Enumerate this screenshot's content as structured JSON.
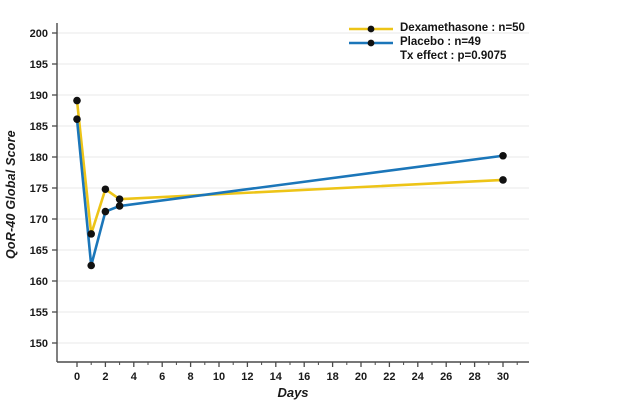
{
  "chart_data": {
    "type": "line",
    "title": "",
    "xlabel": "Days",
    "ylabel": "QoR-40 Global Score",
    "x_ticks": [
      0,
      2,
      4,
      6,
      8,
      10,
      12,
      14,
      16,
      18,
      20,
      22,
      24,
      26,
      28,
      30
    ],
    "x_minor_ticks": [
      1,
      3,
      5,
      7,
      9,
      11,
      13,
      15,
      17,
      19,
      21,
      23,
      25,
      27,
      29,
      31
    ],
    "y_ticks": [
      150,
      155,
      160,
      165,
      170,
      175,
      180,
      185,
      190,
      195,
      200
    ],
    "xlim": [
      -1.4,
      31.8
    ],
    "ylim": [
      147,
      201.6
    ],
    "grid": "horizontal",
    "legend_position": "top-right",
    "marker": "filled-circle",
    "marker_color": "#111111",
    "series": [
      {
        "name": "Dexamethasone : n=50",
        "color": "#EDC417",
        "x": [
          0,
          1,
          2,
          3,
          30
        ],
        "y": [
          189.1,
          167.6,
          174.8,
          173.2,
          176.3
        ]
      },
      {
        "name": "Placebo : n=49",
        "color": "#1B76B9",
        "x": [
          0,
          1,
          2,
          3,
          30
        ],
        "y": [
          186.1,
          162.5,
          171.2,
          172.1,
          180.2
        ]
      }
    ],
    "annotation": "Tx effect : p=0.9075"
  },
  "colors": {
    "grid": "#E8E8E8",
    "axis": "#4A4A4A",
    "tick_text": "#1A1A1A"
  }
}
